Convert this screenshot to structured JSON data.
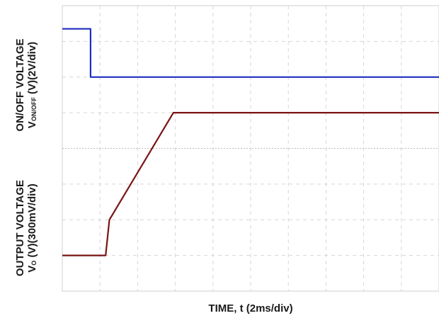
{
  "chart_data": {
    "type": "line",
    "title": "",
    "xlabel": "TIME, t (2ms/div)",
    "x_divisions": 10,
    "y_divisions": 8,
    "upper_panel": {
      "ylabel_line1": "ON/OFF VOLTAGE",
      "ylabel_line2_main": "V",
      "ylabel_line2_sub": "ON/OFF",
      "ylabel_line2_rest": " (V)(2V/div)"
    },
    "lower_panel": {
      "ylabel_line1": "OUTPUT VOLTAGE",
      "ylabel_line2_main": "V",
      "ylabel_line2_sub": "O",
      "ylabel_line2_rest": " (V)(300mV/div)"
    },
    "series": [
      {
        "color": "#1f2fbf",
        "x": [
          0,
          0.75,
          0.75,
          10
        ],
        "y": [
          7.35,
          7.35,
          6.0,
          6.0
        ]
      },
      {
        "color": "#7a1414",
        "x": [
          0,
          1.15,
          1.25,
          2.95,
          10
        ],
        "y": [
          1.0,
          1.0,
          2.0,
          5.0,
          5.0
        ]
      }
    ],
    "grid": true
  }
}
